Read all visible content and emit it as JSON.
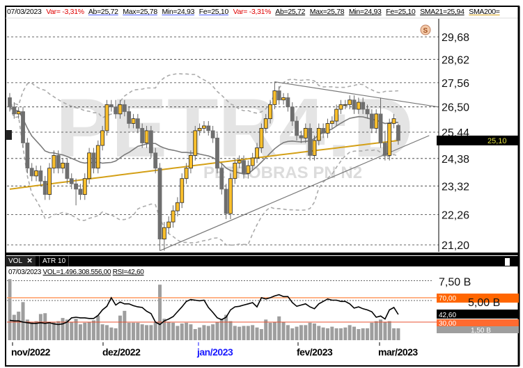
{
  "legend": {
    "date": "07/03/2023",
    "var1": "Var= -3,31%",
    "ab1": "Ab=25,72",
    "max1": "Max=25,78",
    "min1": "Min=24,93",
    "fe1": "Fe=25,10",
    "var2": "Var= -3,31%",
    "ab2": "Ab=25,72",
    "max2": "Max=25,78",
    "min2": "Min=24,93",
    "fe2": "Fe=25,10",
    "sma21": "SMA21=25,94",
    "sma200": "SMA200="
  },
  "watermark": {
    "ticker": "PETR4:D",
    "name": "PETROBRAS PN N2"
  },
  "price_axis": [
    "29,68",
    "28,62",
    "27,56",
    "26,50",
    "25,44",
    "24,38",
    "23,32",
    "22,26",
    "21,20"
  ],
  "last_price_label": "25,10",
  "subpane": {
    "tabs": [
      {
        "label": "VOL",
        "close": "✕"
      },
      {
        "label": "ATR 10"
      }
    ],
    "legend_date": "07/03/2023",
    "vol_text": "VOL=1.496.308.556,00",
    "rsi_text": "RSI=42,60",
    "axis": {
      "v750": "7,50 B",
      "v500": "5,00 B",
      "v150": "1,50 B"
    },
    "rsi_levels": {
      "high": "70,00",
      "low": "30,00",
      "current": "42,60"
    }
  },
  "x_axis": [
    {
      "label": "nov/2022",
      "highlight": false
    },
    {
      "label": "dez/2022",
      "highlight": false
    },
    {
      "label": "jan/2023",
      "highlight": true
    },
    {
      "label": "fev/2023",
      "highlight": false
    },
    {
      "label": "mar/2023",
      "highlight": false
    }
  ],
  "colors": {
    "up": "#fbc02d",
    "down": "#6e6e6e",
    "sma21": "#7a7a7a",
    "sma200": "#d4a017",
    "rsi_band": "#ff6600",
    "negative": "#e00000",
    "month_highlight": "#1a1aff"
  },
  "chart_data": {
    "type": "candlestick",
    "scale": "log",
    "ylim": [
      21.2,
      29.68
    ],
    "candles": [
      [
        26.9,
        27.1,
        26.3,
        26.5
      ],
      [
        26.5,
        26.7,
        26.0,
        26.2
      ],
      [
        26.2,
        26.5,
        26.0,
        26.3
      ],
      [
        26.3,
        26.5,
        24.8,
        25.0
      ],
      [
        25.0,
        25.2,
        23.8,
        24.0
      ],
      [
        24.0,
        24.2,
        23.5,
        23.7
      ],
      [
        23.7,
        24.1,
        23.5,
        23.9
      ],
      [
        23.9,
        24.1,
        23.3,
        23.5
      ],
      [
        23.5,
        23.7,
        22.8,
        23.0
      ],
      [
        23.0,
        24.2,
        22.8,
        24.0
      ],
      [
        24.0,
        24.7,
        23.8,
        24.5
      ],
      [
        24.5,
        24.7,
        23.8,
        24.0
      ],
      [
        24.0,
        24.4,
        23.8,
        24.2
      ],
      [
        24.2,
        24.4,
        23.4,
        23.6
      ],
      [
        23.6,
        23.8,
        23.2,
        23.4
      ],
      [
        23.4,
        23.6,
        22.6,
        23.2
      ],
      [
        23.2,
        23.4,
        22.8,
        23.0
      ],
      [
        23.0,
        23.8,
        22.8,
        23.6
      ],
      [
        23.6,
        24.8,
        23.4,
        24.6
      ],
      [
        24.6,
        24.8,
        23.8,
        24.0
      ],
      [
        24.0,
        25.1,
        23.8,
        24.9
      ],
      [
        24.9,
        25.7,
        24.7,
        25.5
      ],
      [
        25.5,
        26.8,
        25.3,
        26.6
      ],
      [
        26.6,
        26.8,
        26.3,
        26.5
      ],
      [
        26.5,
        26.8,
        26.0,
        26.2
      ],
      [
        26.2,
        26.8,
        26.0,
        26.6
      ],
      [
        26.6,
        26.8,
        26.1,
        26.3
      ],
      [
        26.3,
        26.5,
        25.6,
        25.8
      ],
      [
        25.8,
        26.2,
        25.6,
        26.0
      ],
      [
        26.0,
        26.2,
        25.4,
        25.6
      ],
      [
        25.6,
        25.8,
        24.8,
        25.0
      ],
      [
        25.0,
        25.7,
        24.8,
        25.5
      ],
      [
        25.5,
        25.7,
        24.4,
        24.6
      ],
      [
        24.6,
        24.8,
        23.8,
        24.0
      ],
      [
        24.0,
        24.2,
        21.0,
        21.4
      ],
      [
        21.4,
        22.0,
        21.0,
        21.8
      ],
      [
        21.8,
        22.2,
        21.6,
        22.0
      ],
      [
        22.0,
        22.6,
        21.8,
        22.4
      ],
      [
        22.4,
        22.9,
        22.2,
        22.7
      ],
      [
        22.7,
        23.8,
        22.5,
        23.6
      ],
      [
        23.6,
        24.2,
        23.4,
        24.0
      ],
      [
        24.0,
        24.7,
        23.8,
        24.5
      ],
      [
        24.5,
        25.7,
        24.3,
        25.5
      ],
      [
        25.5,
        25.8,
        25.3,
        25.6
      ],
      [
        25.6,
        25.9,
        25.4,
        25.7
      ],
      [
        25.7,
        25.9,
        25.3,
        25.5
      ],
      [
        25.5,
        25.7,
        25.0,
        25.2
      ],
      [
        25.2,
        25.4,
        23.8,
        24.0
      ],
      [
        24.0,
        24.2,
        23.0,
        23.2
      ],
      [
        23.2,
        23.4,
        22.1,
        22.3
      ],
      [
        22.3,
        23.8,
        22.1,
        23.6
      ],
      [
        23.6,
        24.4,
        23.4,
        24.2
      ],
      [
        24.2,
        24.5,
        24.0,
        24.3
      ],
      [
        24.3,
        24.5,
        23.6,
        23.8
      ],
      [
        23.8,
        24.3,
        23.6,
        24.1
      ],
      [
        24.1,
        24.6,
        23.9,
        24.4
      ],
      [
        24.4,
        25.0,
        24.2,
        24.8
      ],
      [
        24.8,
        25.8,
        24.6,
        25.6
      ],
      [
        25.6,
        26.2,
        25.4,
        26.0
      ],
      [
        26.0,
        26.8,
        25.8,
        26.6
      ],
      [
        26.6,
        27.6,
        26.4,
        27.2
      ],
      [
        27.2,
        27.4,
        26.6,
        26.8
      ],
      [
        26.8,
        27.1,
        26.6,
        26.9
      ],
      [
        26.9,
        27.1,
        26.3,
        26.5
      ],
      [
        26.5,
        26.7,
        25.7,
        25.9
      ],
      [
        25.9,
        26.1,
        25.1,
        25.3
      ],
      [
        25.3,
        25.5,
        25.0,
        25.2
      ],
      [
        25.2,
        25.8,
        25.0,
        25.6
      ],
      [
        25.6,
        25.8,
        24.3,
        24.5
      ],
      [
        24.5,
        25.3,
        24.3,
        25.1
      ],
      [
        25.1,
        25.8,
        24.9,
        25.6
      ],
      [
        25.6,
        25.8,
        25.2,
        25.4
      ],
      [
        25.4,
        26.0,
        25.2,
        25.8
      ],
      [
        25.8,
        26.1,
        25.6,
        25.9
      ],
      [
        25.9,
        26.6,
        25.7,
        26.4
      ],
      [
        26.4,
        26.8,
        26.2,
        26.6
      ],
      [
        26.6,
        26.8,
        26.4,
        26.6
      ],
      [
        26.6,
        27.0,
        26.4,
        26.8
      ],
      [
        26.8,
        27.0,
        26.2,
        26.4
      ],
      [
        26.4,
        26.9,
        26.2,
        26.7
      ],
      [
        26.7,
        26.9,
        26.2,
        26.4
      ],
      [
        26.4,
        26.6,
        26.0,
        26.2
      ],
      [
        26.2,
        26.4,
        25.4,
        25.6
      ],
      [
        25.6,
        26.4,
        25.4,
        26.2
      ],
      [
        26.2,
        26.9,
        24.8,
        25.0
      ],
      [
        25.0,
        25.5,
        24.3,
        24.5
      ],
      [
        24.5,
        26.0,
        24.3,
        25.8
      ],
      [
        25.8,
        26.2,
        25.6,
        26.0
      ],
      [
        25.72,
        25.78,
        24.93,
        25.1
      ]
    ],
    "sma200": {
      "start": 23.2,
      "end": 25.1
    },
    "trendlines": [
      {
        "from": [
          34,
          21.0
        ],
        "to": [
          95,
          25.3
        ]
      },
      {
        "from": [
          60,
          27.6
        ],
        "to": [
          97,
          26.5
        ]
      }
    ],
    "volume_billions": [
      7.7,
      3.2,
      3.6,
      4.8,
      2.6,
      2.3,
      2.4,
      3.3,
      3.4,
      2.2,
      2.3,
      2.4,
      2.8,
      2.6,
      2.3,
      2.7,
      2.0,
      2.2,
      2.3,
      2.5,
      3.1,
      2.0,
      1.9,
      1.6,
      1.5,
      3.1,
      3.7,
      2.2,
      2.2,
      2.2,
      2.0,
      1.9,
      1.9,
      2.3,
      7.0,
      2.7,
      2.3,
      2.2,
      1.8,
      2.1,
      2.2,
      2.0,
      1.4,
      1.6,
      1.9,
      1.8,
      2.0,
      2.3,
      2.6,
      3.2,
      2.4,
      1.8,
      1.7,
      1.8,
      1.8,
      1.9,
      1.6,
      1.4,
      2.6,
      2.2,
      2.3,
      3.0,
      2.3,
      1.9,
      1.5,
      1.7,
      1.9,
      1.9,
      2.2,
      2.1,
      1.8,
      1.6,
      1.5,
      1.7,
      1.5,
      1.5,
      1.6,
      1.9,
      1.7,
      1.4,
      1.5,
      1.5,
      2.2,
      2.4,
      2.6,
      2.3,
      2.4,
      1.5,
      1.5
    ],
    "rsi": [
      33,
      32,
      32,
      30,
      29,
      28,
      28,
      29,
      28,
      29,
      27,
      26,
      27,
      30,
      37,
      38,
      37,
      37,
      36,
      36,
      41,
      50,
      56,
      70,
      58,
      63,
      60,
      60,
      57,
      55,
      54,
      48,
      44,
      30,
      26,
      32,
      35,
      39,
      47,
      55,
      64,
      67,
      66,
      65,
      66,
      54,
      46,
      37,
      34,
      38,
      50,
      55,
      56,
      58,
      60,
      62,
      55,
      70,
      68,
      70,
      73,
      75,
      72,
      72,
      62,
      56,
      58,
      60,
      55,
      52,
      60,
      64,
      68,
      66,
      66,
      64,
      64,
      60,
      53,
      55,
      52,
      50,
      47,
      38,
      40,
      35,
      50,
      54,
      42.6
    ]
  }
}
